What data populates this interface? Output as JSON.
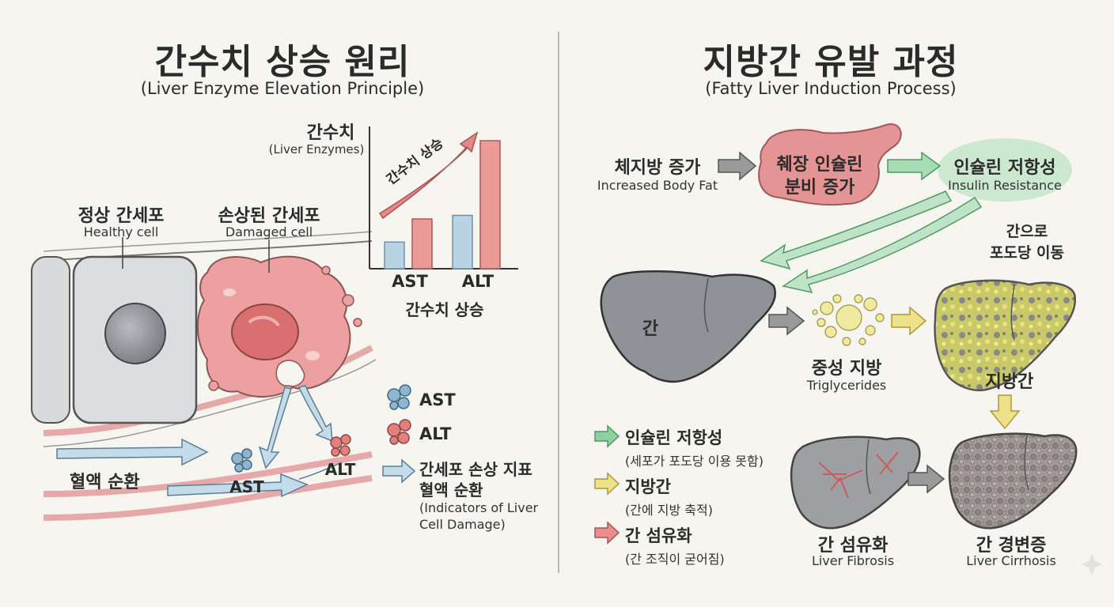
{
  "left": {
    "title": "간수치 상승 원리",
    "subtitle": "(Liver Enzyme Elevation Principle)",
    "healthy_ko": "정상 간세포",
    "healthy_en": "Healthy cell",
    "damaged_ko": "손상된 간세포",
    "damaged_en": "Damaged cell",
    "blood_flow": "혈액 순환",
    "ast": "AST",
    "alt": "ALT",
    "chart": {
      "ylabel_ko": "간수치",
      "ylabel_en": "(Liver Enzymes)",
      "trend_label": "간수치 상승",
      "xlabel": "간수치 상승"
    },
    "legend": {
      "ast": "AST",
      "alt": "ALT",
      "indicator_ko_1": "간세포 손상 지표",
      "indicator_ko_2": "혈액 순환",
      "indicator_en_1": "(Indicators of Liver",
      "indicator_en_2": "Cell Damage)"
    }
  },
  "chart_data": {
    "type": "bar",
    "categories": [
      "AST",
      "ALT"
    ],
    "series": [
      {
        "values": [
          1.5,
          3.0
        ]
      },
      {
        "values": [
          2.8,
          7.2
        ]
      }
    ],
    "ylabel": "간수치",
    "xlabel": "간수치 상승",
    "ylim": [
      0,
      8
    ],
    "colors": [
      "#b9d3e3",
      "#ec9a98"
    ],
    "grid": false
  },
  "right": {
    "title": "지방간 유발 과정",
    "subtitle": "(Fatty Liver Induction Process)",
    "body_fat_ko": "체지방 증가",
    "body_fat_en": "Increased Body Fat",
    "pancreas_1": "췌장 인슐린",
    "pancreas_2": "분비 증가",
    "insulin_ko": "인슐린 저항성",
    "insulin_en": "Insulin Resistance",
    "glucose_1": "간으로",
    "glucose_2": "포도당 이동",
    "liver": "간",
    "tg_ko": "중성 지방",
    "tg_en": "Triglycerides",
    "fatty_liver": "지방간",
    "fibrosis_ko": "간 섬유화",
    "fibrosis_en": "Liver Fibrosis",
    "cirrhosis_ko": "간 경변증",
    "cirrhosis_en": "Liver Cirrhosis",
    "legend": [
      {
        "title": "인슐린 저항성",
        "desc": "(세포가 포도당 이용 못함)",
        "color": "#8fd0a3"
      },
      {
        "title": "지방간",
        "desc": "(간에 지방 축적)",
        "color": "#efe08a"
      },
      {
        "title": "간 섬유화",
        "desc": "(간 조직이 굳어짐)",
        "color": "#ec8c8c"
      }
    ]
  }
}
